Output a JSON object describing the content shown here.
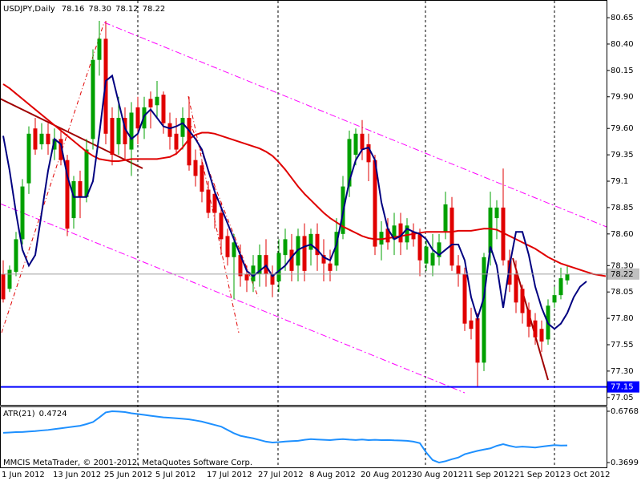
{
  "chart_data": [
    {
      "type": "candlestick",
      "title": "USDJPY,Daily",
      "quote_labels": [
        "78.16",
        "78.30",
        "78.12",
        "78.22"
      ],
      "footer": "MMCIS MetaTrader, © 2001-2012, MetaQuotes Software Corp.",
      "categories": [
        "1 Jun 2012",
        null,
        null,
        null,
        null,
        null,
        null,
        null,
        "13 Jun 2012",
        null,
        null,
        null,
        null,
        null,
        null,
        null,
        "25 Jun 2012",
        null,
        null,
        null,
        null,
        null,
        null,
        null,
        "5 Jul 2012",
        null,
        null,
        null,
        null,
        null,
        null,
        null,
        "17 Jul 2012",
        null,
        null,
        null,
        null,
        null,
        null,
        null,
        "27 Jul 2012",
        null,
        null,
        null,
        null,
        null,
        null,
        null,
        "8 Aug 2012",
        null,
        null,
        null,
        null,
        null,
        null,
        null,
        "20 Aug 2012",
        null,
        null,
        null,
        null,
        null,
        null,
        null,
        "30 Aug 2012",
        null,
        null,
        null,
        null,
        null,
        null,
        null,
        "11 Sep 2012",
        null,
        null,
        null,
        null,
        null,
        null,
        null,
        "21 Sep 2012",
        null,
        null,
        null,
        null,
        null,
        null,
        null,
        "3 Oct 2012",
        null,
        null,
        null,
        null,
        null,
        null
      ],
      "open": [
        78.22,
        78.08,
        78.24,
        78.55,
        79.08,
        79.6,
        79.45,
        79.55,
        79.4,
        79.5,
        79.3,
        78.75,
        79.1,
        78.95,
        79.5,
        80.25,
        80.45,
        79.7,
        79.45,
        79.7,
        79.4,
        79.8,
        79.6,
        79.88,
        79.82,
        79.92,
        79.65,
        79.55,
        79.52,
        79.7,
        79.3,
        79.25,
        79.02,
        78.98,
        78.8,
        78.58,
        78.38,
        78.4,
        78.22,
        78.15,
        78.22,
        78.4,
        78.22,
        78.15,
        78.4,
        78.45,
        78.3,
        78.58,
        78.45,
        78.6,
        78.4,
        78.32,
        78.3,
        78.6,
        79.05,
        79.35,
        79.55,
        79.45,
        79.3,
        78.5,
        78.65,
        78.55,
        78.7,
        78.52,
        78.62,
        78.6,
        78.32,
        78.3,
        78.38,
        78.62,
        78.85,
        78.3,
        78.22,
        77.78,
        77.8,
        77.38,
        78.42,
        78.75,
        78.85,
        78.35,
        78.22,
        78.08,
        77.88,
        77.78,
        77.7,
        77.6,
        77.95,
        78.02,
        78.16,
        null,
        null,
        null,
        null,
        null,
        null
      ],
      "high": [
        78.35,
        78.3,
        78.62,
        79.12,
        79.62,
        79.7,
        79.65,
        79.65,
        79.6,
        79.6,
        79.35,
        79.15,
        79.2,
        79.5,
        80.35,
        80.62,
        80.62,
        79.8,
        79.9,
        79.8,
        79.85,
        79.9,
        79.9,
        79.95,
        80.05,
        79.95,
        79.75,
        79.7,
        79.8,
        79.9,
        79.4,
        79.3,
        79.1,
        79.05,
        78.9,
        78.65,
        78.6,
        78.5,
        78.3,
        78.4,
        78.5,
        78.55,
        78.3,
        78.55,
        78.65,
        78.6,
        78.65,
        78.7,
        78.65,
        78.7,
        78.55,
        78.45,
        78.75,
        79.15,
        79.58,
        79.6,
        79.68,
        79.55,
        79.35,
        78.72,
        78.75,
        78.8,
        78.8,
        78.75,
        78.7,
        78.65,
        78.55,
        78.6,
        78.6,
        79.0,
        78.95,
        78.4,
        78.28,
        77.9,
        77.85,
        78.42,
        79.0,
        78.92,
        79.22,
        78.45,
        78.35,
        78.12,
        77.95,
        77.85,
        77.78,
        77.98,
        78.1,
        78.28,
        78.3,
        null,
        null,
        null,
        null,
        null,
        null
      ],
      "low": [
        77.95,
        78.05,
        78.2,
        78.5,
        78.98,
        79.35,
        79.4,
        79.35,
        79.3,
        79.25,
        78.58,
        78.65,
        78.75,
        78.9,
        79.4,
        80.1,
        79.45,
        79.25,
        79.35,
        79.3,
        79.15,
        79.45,
        79.5,
        79.6,
        79.7,
        79.55,
        79.4,
        79.35,
        79.4,
        79.2,
        79.05,
        78.9,
        78.75,
        78.65,
        78.4,
        78.3,
        77.98,
        78.1,
        78.05,
        78.05,
        78.1,
        78.1,
        78.0,
        78.05,
        78.25,
        78.15,
        78.15,
        78.15,
        78.3,
        78.25,
        78.15,
        78.15,
        78.25,
        78.55,
        78.95,
        79.25,
        79.3,
        79.1,
        78.4,
        78.35,
        78.45,
        78.4,
        78.4,
        78.45,
        78.48,
        78.2,
        78.25,
        78.2,
        78.3,
        78.55,
        78.25,
        78.1,
        77.68,
        77.6,
        77.15,
        77.3,
        78.3,
        78.55,
        78.3,
        78.05,
        77.85,
        77.75,
        77.62,
        77.55,
        77.48,
        77.55,
        77.9,
        77.98,
        78.12,
        null,
        null,
        null,
        null,
        null,
        null
      ],
      "close": [
        77.98,
        78.26,
        78.55,
        79.05,
        79.55,
        79.4,
        79.55,
        79.45,
        79.5,
        79.3,
        78.65,
        79.1,
        78.95,
        79.4,
        80.25,
        80.45,
        79.55,
        79.35,
        79.7,
        79.45,
        79.75,
        79.6,
        79.8,
        79.8,
        79.9,
        79.65,
        79.52,
        79.4,
        79.7,
        79.25,
        79.15,
        79.0,
        78.8,
        78.8,
        78.55,
        78.38,
        78.52,
        78.2,
        78.16,
        78.3,
        78.4,
        78.22,
        78.12,
        78.42,
        78.55,
        78.25,
        78.58,
        78.25,
        78.6,
        78.4,
        78.32,
        78.25,
        78.62,
        79.05,
        79.5,
        79.55,
        79.4,
        79.28,
        78.48,
        78.62,
        78.52,
        78.68,
        78.52,
        78.68,
        78.55,
        78.35,
        78.48,
        78.42,
        78.52,
        78.88,
        78.3,
        78.22,
        77.75,
        77.7,
        77.38,
        78.38,
        78.85,
        78.85,
        78.35,
        78.12,
        77.95,
        77.85,
        77.72,
        77.62,
        77.58,
        77.92,
        78.02,
        78.18,
        78.22,
        null,
        null,
        null,
        null,
        null,
        null
      ],
      "up_color": "#00a000",
      "down_color": "#e00000",
      "overlays": [
        {
          "color": "#e00000",
          "values": [
            80.02,
            79.98,
            79.93,
            79.88,
            79.83,
            79.78,
            79.73,
            79.68,
            79.63,
            79.58,
            79.53,
            79.48,
            79.43,
            79.38,
            79.34,
            79.31,
            79.3,
            79.29,
            79.29,
            79.3,
            79.31,
            79.31,
            79.31,
            79.31,
            79.31,
            79.32,
            79.33,
            79.36,
            79.42,
            79.5,
            79.54,
            79.56,
            79.56,
            79.55,
            79.53,
            79.51,
            79.49,
            79.47,
            79.45,
            79.43,
            79.41,
            79.38,
            79.34,
            79.28,
            79.21,
            79.13,
            79.05,
            78.98,
            78.92,
            78.86,
            78.8,
            78.75,
            78.71,
            78.67,
            78.64,
            78.61,
            78.58,
            78.56,
            78.55,
            78.55,
            78.56,
            78.57,
            78.58,
            78.59,
            78.6,
            78.61,
            78.62,
            78.62,
            78.62,
            78.62,
            78.62,
            78.63,
            78.63,
            78.63,
            78.64,
            78.65,
            78.65,
            78.64,
            78.61,
            78.58,
            78.55,
            78.52,
            78.49,
            78.46,
            78.42,
            78.38,
            78.35,
            78.32,
            78.3,
            78.28,
            78.26,
            78.24,
            78.22,
            78.21,
            78.2
          ]
        },
        {
          "color": "#000080",
          "values": [
            79.53,
            79.2,
            78.8,
            78.45,
            78.3,
            78.4,
            78.8,
            79.2,
            79.5,
            79.45,
            79.15,
            78.95,
            78.95,
            78.95,
            79.1,
            79.55,
            80.05,
            80.1,
            79.85,
            79.6,
            79.5,
            79.55,
            79.72,
            79.78,
            79.7,
            79.62,
            79.6,
            79.62,
            79.65,
            79.58,
            79.5,
            79.4,
            79.2,
            79.0,
            78.85,
            78.7,
            78.55,
            78.4,
            78.25,
            78.2,
            78.25,
            78.3,
            78.2,
            78.25,
            78.3,
            78.38,
            78.45,
            78.48,
            78.5,
            78.45,
            78.38,
            78.35,
            78.5,
            78.8,
            79.1,
            79.3,
            79.4,
            79.42,
            79.3,
            78.9,
            78.65,
            78.55,
            78.58,
            78.65,
            78.62,
            78.6,
            78.55,
            78.45,
            78.4,
            78.45,
            78.5,
            78.5,
            78.35,
            78.0,
            77.8,
            78.0,
            78.48,
            78.3,
            77.9,
            78.3,
            78.62,
            78.62,
            78.4,
            78.1,
            77.9,
            77.75,
            77.7,
            77.75,
            77.85,
            78.0,
            78.1,
            78.15,
            null,
            null,
            null
          ]
        }
      ],
      "hlines": [
        {
          "value": 77.15,
          "color": "#0000ff"
        }
      ],
      "ylim": [
        76.98,
        80.81
      ],
      "yticks": [
        80.65,
        {
          "value": 80.4,
          "label": "80.40"
        },
        80.15,
        {
          "value": 79.9,
          "label": "79.90"
        },
        {
          "value": 79.6,
          "label": "79.60"
        },
        79.35,
        79.1,
        78.85,
        {
          "value": 78.6,
          "label": "78.60"
        },
        {
          "value": 78.3,
          "label": "78.30"
        },
        78.05,
        {
          "value": 77.8,
          "label": "77.80"
        },
        77.55,
        {
          "value": 77.3,
          "label": "77.30"
        },
        77.05
      ]
    },
    {
      "type": "line",
      "series": [
        {
          "name": "ATR(21)",
          "color": "#1e90ff",
          "values": [
            0.548,
            0.55,
            0.552,
            0.553,
            0.556,
            0.558,
            0.562,
            0.565,
            0.57,
            0.575,
            0.58,
            0.585,
            0.59,
            0.6,
            0.612,
            0.64,
            0.67,
            0.6768,
            0.675,
            0.672,
            0.665,
            0.66,
            0.655,
            0.65,
            0.645,
            0.64,
            0.638,
            0.635,
            0.632,
            0.628,
            0.622,
            0.615,
            0.605,
            0.595,
            0.585,
            0.565,
            0.545,
            0.53,
            0.522,
            0.515,
            0.505,
            0.495,
            0.49,
            0.492,
            0.496,
            0.498,
            0.5,
            0.506,
            0.51,
            0.508,
            0.506,
            0.504,
            0.508,
            0.51,
            0.507,
            0.505,
            0.508,
            0.504,
            0.506,
            0.504,
            0.505,
            0.503,
            0.502,
            0.5,
            0.495,
            0.486,
            0.43,
            0.385,
            0.3699,
            0.378,
            0.39,
            0.4,
            0.42,
            0.43,
            0.44,
            0.448,
            0.455,
            0.47,
            0.48,
            0.47,
            0.462,
            0.465,
            0.463,
            0.46,
            0.465,
            0.47,
            0.474,
            0.472,
            0.4724,
            null,
            null,
            null,
            null,
            null,
            null
          ]
        }
      ],
      "ylim": [
        0.3699,
        0.6768
      ],
      "yticks": [
        0.6768,
        0.3699
      ]
    }
  ]
}
